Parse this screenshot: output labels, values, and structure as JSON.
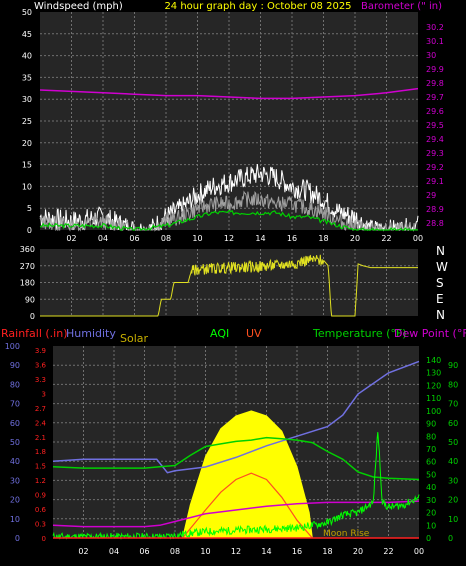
{
  "header": {
    "left_label": "Windspeed (mph)",
    "center_label": "24 hour graph day : October 08 2025",
    "right_label": "Barometer (\" in)"
  },
  "x_ticks": [
    "02",
    "04",
    "06",
    "08",
    "10",
    "12",
    "14",
    "16",
    "18",
    "20",
    "22",
    "00"
  ],
  "colors": {
    "background": "#000000",
    "plot_bg": "#262626",
    "grid": "#707070",
    "barometer": "#d000d0",
    "wind_gust": "#ffffff",
    "wind_speed": "#a0a0a0",
    "wind_avg": "#00d000",
    "direction": "#e0e020",
    "solar": "#ffff00",
    "uv": "#ff5020",
    "humidity": "#7070e0",
    "temperature": "#00d000",
    "dewpoint": "#d000d0",
    "rain": "#ff2020",
    "aqi": "#00ff00"
  },
  "wind_chart": {
    "left_ticks": [
      "50",
      "45",
      "40",
      "35",
      "30",
      "25",
      "20",
      "15",
      "10",
      "5",
      "0"
    ],
    "right_ticks": [
      "30.2",
      "30.1",
      "30",
      "29.9",
      "29.8",
      "29.7",
      "29.6",
      "29.5",
      "29.4",
      "29.3",
      "29.2",
      "29.1",
      "29",
      "28.9",
      "28.8"
    ]
  },
  "direction_chart": {
    "left_ticks": [
      "360",
      "270",
      "180",
      "90",
      "0"
    ],
    "right_letters": [
      "N",
      "W",
      "S",
      "E",
      "N"
    ]
  },
  "bottom_chart": {
    "labels": {
      "rainfall": "Rainfall (.in)",
      "humidity": "Humidity",
      "solar": "Solar",
      "aqi": "AQI",
      "uv": "UV",
      "temperature": "Temperature (°F)",
      "dewpoint": "Dew Point (°F)",
      "moonrise": "Moon Rise"
    },
    "humidity_ticks": [
      "100",
      "90",
      "80",
      "70",
      "60",
      "50",
      "40",
      "30",
      "20",
      "10",
      "0"
    ],
    "rain_ticks": [
      "3.9",
      "3.6",
      "3.3",
      "3",
      "2.7",
      "2.4",
      "2.1",
      "1.8",
      "1.5",
      "1.2",
      "0.9",
      "0.6",
      "0.3",
      "0"
    ],
    "temp_ticks": [
      "140",
      "130",
      "120",
      "110",
      "100",
      "90",
      "80",
      "70",
      "60",
      "50",
      "40",
      "30",
      "20",
      "10",
      "0"
    ],
    "far_ticks": [
      "90",
      "80",
      "70",
      "60",
      "50",
      "40",
      "30",
      "20",
      "10",
      "0"
    ]
  },
  "chart_data": [
    {
      "type": "line",
      "x_unit": "hour of day",
      "xlim": [
        0,
        24
      ],
      "series": [
        {
          "axis": "barometer_inHg",
          "x": [
            0,
            2,
            4,
            6,
            8,
            10,
            12,
            14,
            16,
            18,
            20,
            22,
            24
          ],
          "values": [
            29.75,
            29.74,
            29.73,
            29.72,
            29.71,
            29.71,
            29.7,
            29.69,
            29.69,
            29.7,
            29.71,
            29.73,
            29.76
          ]
        },
        {
          "axis": "wind_gust_mph",
          "x": [
            0,
            2,
            4,
            6,
            7,
            8,
            9,
            10,
            11,
            12,
            13,
            14,
            15,
            16,
            17,
            18,
            19,
            20,
            21,
            22,
            23,
            24
          ],
          "values": [
            3,
            2,
            3,
            0,
            0,
            3,
            5,
            8,
            10,
            11,
            12,
            13,
            12,
            10,
            9,
            7,
            4,
            3,
            0,
            0,
            0,
            1
          ]
        },
        {
          "axis": "wind_speed_mph",
          "x": [
            0,
            2,
            4,
            6,
            7,
            8,
            9,
            10,
            11,
            12,
            13,
            14,
            15,
            16,
            17,
            18,
            19,
            20,
            21,
            22,
            23,
            24
          ],
          "values": [
            2,
            1,
            2,
            0,
            0,
            2,
            3,
            5,
            6,
            6,
            7,
            7,
            6,
            6,
            5,
            4,
            2,
            1,
            0,
            0,
            0,
            0
          ]
        },
        {
          "axis": "wind_avg_mph",
          "x": [
            0,
            2,
            4,
            6,
            8,
            9,
            10,
            11,
            12,
            13,
            14,
            15,
            16,
            17,
            18,
            19,
            20,
            24
          ],
          "values": [
            1,
            1,
            1,
            0,
            1,
            2,
            3,
            4,
            4,
            4,
            4,
            4,
            3,
            3,
            2,
            1,
            0,
            0
          ]
        }
      ]
    },
    {
      "type": "line",
      "x_unit": "hour of day",
      "xlim": [
        0,
        24
      ],
      "ylim": [
        0,
        360
      ],
      "series": [
        {
          "axis": "wind_direction_deg",
          "x": [
            0,
            7.5,
            7.7,
            8.3,
            8.5,
            9.4,
            9.6,
            10,
            12,
            14,
            16,
            17,
            18,
            18.3,
            18.5,
            20,
            20.2,
            20.5,
            21,
            22,
            24
          ],
          "values": [
            0,
            0,
            90,
            90,
            180,
            180,
            240,
            250,
            260,
            265,
            280,
            300,
            300,
            270,
            0,
            0,
            280,
            270,
            260,
            260,
            260
          ]
        }
      ]
    },
    {
      "type": "line",
      "x_unit": "hour of day",
      "xlim": [
        0,
        24
      ],
      "series": [
        {
          "axis": "humidity_pct",
          "x": [
            0,
            2,
            4,
            6,
            6.8,
            7.5,
            8,
            10,
            12,
            14,
            16,
            18,
            19,
            20,
            22,
            24
          ],
          "values": [
            40,
            41,
            41,
            41,
            41,
            34,
            35,
            37,
            42,
            48,
            53,
            58,
            64,
            75,
            86,
            92
          ]
        },
        {
          "axis": "solar_temp_scale",
          "x": [
            8.5,
            9,
            10,
            11,
            12,
            13,
            14,
            15,
            16,
            16.8,
            17
          ],
          "values": [
            0,
            26,
            64,
            86,
            96,
            100,
            96,
            84,
            56,
            20,
            0
          ]
        },
        {
          "axis": "uv_temp_scale",
          "x": [
            8.5,
            10,
            11,
            12,
            13,
            14,
            15,
            16,
            17
          ],
          "values": [
            0,
            22,
            36,
            46,
            51,
            46,
            32,
            14,
            0
          ]
        },
        {
          "axis": "temperature_F",
          "x": [
            0,
            2,
            4,
            6,
            7,
            8,
            9,
            10,
            11,
            12,
            13,
            14,
            15,
            16,
            17,
            18,
            19,
            20,
            21,
            22,
            24
          ],
          "values": [
            56,
            55,
            55,
            55,
            56,
            57,
            65,
            72,
            74,
            76,
            77,
            79,
            78,
            77,
            75,
            68,
            62,
            52,
            48,
            47,
            46
          ]
        },
        {
          "axis": "dewpoint_F",
          "x": [
            0,
            2,
            4,
            6,
            7,
            8,
            10,
            12,
            14,
            16,
            18,
            20,
            22,
            24
          ],
          "values": [
            10,
            9,
            9,
            9,
            10,
            13,
            19,
            22,
            25,
            27,
            28,
            28,
            28,
            29
          ]
        },
        {
          "axis": "aqi",
          "x": [
            0,
            6,
            7.5,
            8.5,
            10,
            12,
            14,
            16,
            17,
            18,
            19,
            20,
            21,
            21.3,
            21.6,
            22,
            23,
            24
          ],
          "values": [
            1,
            1,
            1,
            3,
            5,
            6,
            7,
            8,
            10,
            12,
            18,
            20,
            28,
            85,
            28,
            24,
            26,
            32
          ]
        },
        {
          "axis": "rainfall_in",
          "x": [
            0,
            24
          ],
          "values": [
            0,
            0
          ]
        }
      ]
    }
  ]
}
